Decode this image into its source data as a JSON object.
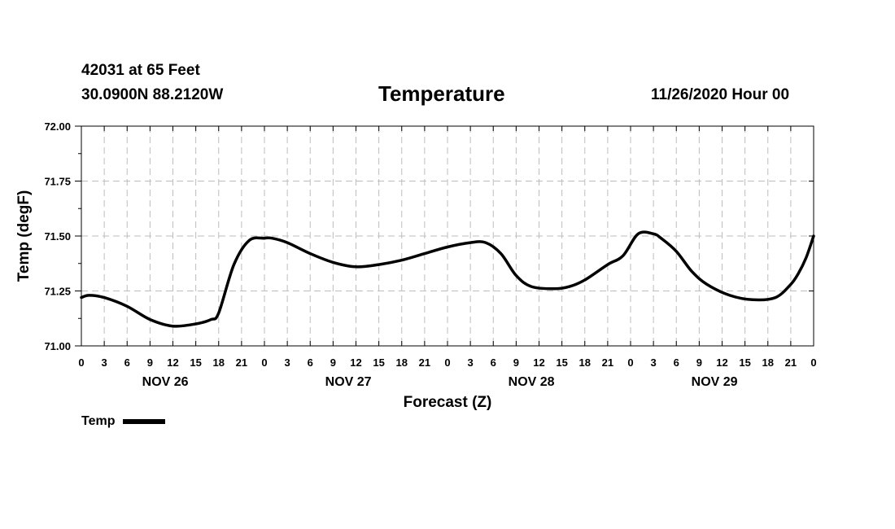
{
  "header": {
    "station": "42031 at 65 Feet",
    "coords": "30.0900N 88.2120W",
    "title": "Temperature",
    "stamp": "11/26/2020 Hour 00"
  },
  "chart_data": {
    "type": "line",
    "title": "Temperature",
    "xlabel": "Forecast (Z)",
    "ylabel": "Temp (degF)",
    "ylim": [
      71.0,
      72.0
    ],
    "yticks": [
      "71.00",
      "71.25",
      "71.50",
      "71.75",
      "72.00"
    ],
    "xlim_hours": [
      0,
      96
    ],
    "xtick_labels": [
      "0",
      "3",
      "6",
      "9",
      "12",
      "15",
      "18",
      "21",
      "0",
      "3",
      "6",
      "9",
      "12",
      "15",
      "18",
      "21",
      "0",
      "3",
      "6",
      "9",
      "12",
      "15",
      "18",
      "21",
      "0",
      "3",
      "6",
      "9",
      "12",
      "15",
      "18",
      "21",
      "0"
    ],
    "day_labels": [
      "NOV 26",
      "NOV 27",
      "NOV 28",
      "NOV 29"
    ],
    "grid": true,
    "legend": "bottom-left",
    "series": [
      {
        "name": "Temp",
        "color": "#000000",
        "x": [
          0,
          1,
          3,
          6,
          9,
          12,
          15,
          17,
          18,
          20,
          22,
          24,
          25,
          27,
          30,
          33,
          36,
          39,
          42,
          45,
          48,
          51,
          53,
          55,
          57,
          59,
          62,
          64,
          66,
          69,
          71,
          73,
          75,
          76,
          78,
          80,
          82,
          85,
          88,
          91,
          93,
          94,
          95,
          96
        ],
        "y": [
          71.22,
          71.23,
          71.22,
          71.18,
          71.12,
          71.09,
          71.1,
          71.12,
          71.15,
          71.37,
          71.48,
          71.49,
          71.49,
          71.47,
          71.42,
          71.38,
          71.36,
          71.37,
          71.39,
          71.42,
          71.45,
          71.47,
          71.47,
          71.42,
          71.32,
          71.27,
          71.26,
          71.27,
          71.3,
          71.37,
          71.41,
          71.51,
          71.51,
          71.49,
          71.43,
          71.34,
          71.28,
          71.23,
          71.21,
          71.22,
          71.28,
          71.33,
          71.4,
          71.5
        ]
      }
    ]
  },
  "legend": {
    "label": "Temp"
  }
}
